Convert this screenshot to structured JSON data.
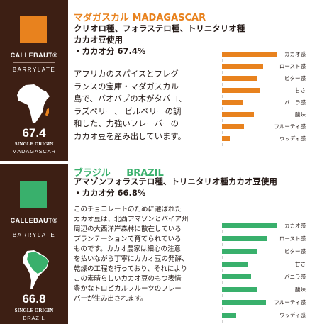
{
  "colors": {
    "label_bg": "#3d1f14",
    "madagascar_accent": "#e8821e",
    "brazil_accent": "#39b06c"
  },
  "madagascar": {
    "title_jp": "マダガスカル",
    "title_en": "MADAGASCAR",
    "brand": "CALLEBAUT®",
    "brand_line": "BARRYLATE",
    "map_icon": "africa-map-icon",
    "cacao_number": "67.4",
    "origin_label": "SINGLE ORIGIN",
    "origin_name": "MADAGASCAR",
    "headline": [
      "クリオロ種、フォラステロ種、トリニタリオ種",
      "カカオ豆使用",
      "・カカオ分 67.4%"
    ],
    "body": [
      "アフリカのスパイスとフレグ",
      "ランスの宝庫・マダガスカル",
      "島で、バオバブの木がタバコ、",
      "ラズベリー、 ビルベリーの調",
      "和した、力強いフレーバーの",
      "カカオ豆を産み出しています。"
    ],
    "flavors": [
      {
        "name": "カカオ感",
        "level": 1.0
      },
      {
        "name": "ロースト感",
        "level": 0.74
      },
      {
        "name": "ビター感",
        "level": 0.63
      },
      {
        "name": "甘さ",
        "level": 0.68
      },
      {
        "name": "バニラ感",
        "level": 0.37
      },
      {
        "name": "酸味",
        "level": 0.58
      },
      {
        "name": "フルーティ感",
        "level": 0.4
      },
      {
        "name": "ウッディ感",
        "level": 0.14
      }
    ]
  },
  "brazil": {
    "title_jp": "ブラジル",
    "title_en": "BRAZIL",
    "brand": "CALLEBAUT®",
    "brand_line": "BARRYLATE",
    "map_icon": "south-america-map-icon",
    "cacao_number": "66.8",
    "origin_label": "SINGLE ORIGIN",
    "origin_name": "BRAZIL",
    "headline": [
      "アマゾンフォラステロ種、トリニタリオ種カカオ豆使用",
      "・カカオ分 66.8%"
    ],
    "body": [
      "このチョコレートのために選ばれた",
      "カカオ豆は、北西アマゾンとバイア州",
      "周辺の大西洋岸森林に散在している",
      "プランテーションで育てられている",
      "ものです。カカオ農家は細心の注意",
      "を払いながら丁寧にカカオ豆の発酵、",
      "乾燥の工程を行っており、それにより",
      "この素晴らしいカカオ豆のもつ表情",
      "豊かなトロピカルフルーツのフレー",
      "バーが生み出されます。"
    ],
    "flavors": [
      {
        "name": "カカオ感",
        "level": 1.0
      },
      {
        "name": "ロースト感",
        "level": 0.82
      },
      {
        "name": "ビター感",
        "level": 0.64
      },
      {
        "name": "甘さ",
        "level": 0.48
      },
      {
        "name": "バニラ感",
        "level": 0.52
      },
      {
        "name": "酸味",
        "level": 0.64
      },
      {
        "name": "フルーティ感",
        "level": 0.8
      },
      {
        "name": "ウッディ感",
        "level": 0.25
      }
    ]
  }
}
